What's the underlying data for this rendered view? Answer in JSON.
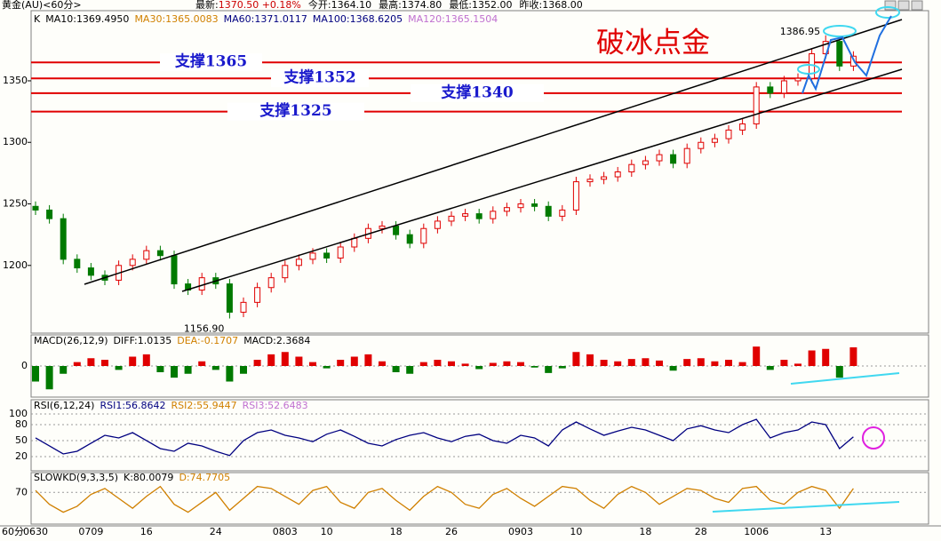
{
  "header": {
    "instrument": "黄金(AU)<60分>",
    "quote": [
      {
        "label": "最新:",
        "value": "1370.50 +0.18%"
      },
      {
        "label": "今开:",
        "value": "1364.10"
      },
      {
        "label": "最高:",
        "value": "1374.80"
      },
      {
        "label": "最低:",
        "value": "1352.00"
      },
      {
        "label": "昨收:",
        "value": "1368.00"
      }
    ]
  },
  "chart_data": {
    "type": "candlestick",
    "title": "破冰点金",
    "legend": [
      {
        "name": "K",
        "color": "#000000"
      },
      {
        "name": "MA10:1369.4950",
        "color": "#000000"
      },
      {
        "name": "MA30:1365.0083",
        "color": "#d08000"
      },
      {
        "name": "MA60:1371.0117",
        "color": "#000080"
      },
      {
        "name": "MA100:1368.6205",
        "color": "#000080"
      },
      {
        "name": "MA120:1365.1504",
        "color": "#c070d0"
      }
    ],
    "categories": [
      "0630",
      null,
      null,
      null,
      "0709",
      null,
      null,
      null,
      "16",
      null,
      null,
      null,
      null,
      "24",
      null,
      null,
      null,
      null,
      "0803",
      null,
      null,
      "10",
      null,
      null,
      null,
      null,
      "18",
      null,
      null,
      null,
      "26",
      null,
      null,
      null,
      null,
      "0903",
      null,
      null,
      null,
      "10",
      null,
      null,
      null,
      null,
      "18",
      null,
      null,
      null,
      "28",
      null,
      null,
      null,
      "1006",
      null,
      null,
      null,
      null,
      "13",
      null,
      null
    ],
    "x_unit_label": "60分",
    "open": [
      1248,
      1245,
      1238,
      1205,
      1198,
      1192,
      1188,
      1200,
      1205,
      1212,
      1208,
      1185,
      1180,
      1190,
      1185,
      1162,
      1170,
      1182,
      1190,
      1200,
      1205,
      1210,
      1206,
      1215,
      1222,
      1230,
      1232,
      1225,
      1218,
      1230,
      1236,
      1240,
      1242,
      1238,
      1244,
      1247,
      1250,
      1248,
      1240,
      1245,
      1268,
      1270,
      1272,
      1276,
      1282,
      1285,
      1290,
      1283,
      1295,
      1300,
      1303,
      1310,
      1315,
      1345,
      1340,
      1350,
      1352,
      1372,
      1382,
      1362
    ],
    "high": [
      1252,
      1249,
      1242,
      1209,
      1202,
      1196,
      1204,
      1209,
      1216,
      1216,
      1212,
      1189,
      1194,
      1194,
      1189,
      1174,
      1186,
      1194,
      1204,
      1209,
      1214,
      1214,
      1219,
      1226,
      1234,
      1236,
      1236,
      1229,
      1234,
      1240,
      1244,
      1246,
      1246,
      1248,
      1251,
      1254,
      1254,
      1252,
      1249,
      1272,
      1274,
      1276,
      1280,
      1286,
      1289,
      1294,
      1294,
      1299,
      1304,
      1307,
      1314,
      1319,
      1349,
      1349,
      1354,
      1356,
      1376,
      1386.95,
      1386,
      1374
    ],
    "low": [
      1241,
      1234,
      1201,
      1194,
      1188,
      1184,
      1184,
      1196,
      1201,
      1204,
      1181,
      1176,
      1176,
      1181,
      1156.9,
      1158,
      1166,
      1178,
      1186,
      1196,
      1201,
      1202,
      1202,
      1211,
      1218,
      1226,
      1221,
      1214,
      1214,
      1226,
      1232,
      1236,
      1234,
      1234,
      1240,
      1243,
      1244,
      1236,
      1236,
      1241,
      1264,
      1266,
      1268,
      1272,
      1278,
      1281,
      1279,
      1279,
      1291,
      1296,
      1299,
      1306,
      1311,
      1336,
      1336,
      1346,
      1348,
      1368,
      1358,
      1358
    ],
    "close": [
      1245,
      1238,
      1205,
      1198,
      1192,
      1188,
      1200,
      1205,
      1212,
      1208,
      1185,
      1180,
      1190,
      1185,
      1162,
      1170,
      1182,
      1190,
      1200,
      1205,
      1210,
      1206,
      1215,
      1222,
      1230,
      1232,
      1225,
      1218,
      1230,
      1236,
      1240,
      1242,
      1238,
      1244,
      1247,
      1250,
      1248,
      1240,
      1245,
      1268,
      1270,
      1272,
      1276,
      1282,
      1285,
      1290,
      1283,
      1295,
      1300,
      1303,
      1310,
      1315,
      1345,
      1340,
      1350,
      1352,
      1372,
      1382,
      1362,
      1370
    ],
    "up_color": "#e00000",
    "down_color": "#007a00",
    "ylim": [
      1145,
      1407
    ],
    "yticks": [
      1200,
      1250,
      1300,
      1350
    ],
    "supports": [
      {
        "value": 1365,
        "label": "支撑1365"
      },
      {
        "value": 1352,
        "label": "支撑1352"
      },
      {
        "value": 1340,
        "label": "支撑1340"
      },
      {
        "value": 1325,
        "label": "支撑1325"
      }
    ],
    "support_color": "#e00000",
    "annotations": [
      {
        "text": "1386.95"
      },
      {
        "text": "1156.90"
      }
    ],
    "macd": {
      "label": "MACD(26,12,9)",
      "legend": [
        {
          "name": "DIFF:1.0135",
          "color": "#000000"
        },
        {
          "name": "DEA:-0.1707",
          "color": "#d08000"
        },
        {
          "name": "MACD:2.3684",
          "color": "#000000"
        }
      ],
      "values": [
        -2,
        -3,
        -1,
        0.5,
        1,
        0.8,
        -0.5,
        1.2,
        1.5,
        -0.8,
        -1.5,
        -1,
        0.6,
        -0.5,
        -2,
        -1,
        0.8,
        1.5,
        1.8,
        1.2,
        0.5,
        -0.3,
        0.8,
        1.2,
        1.5,
        0.6,
        -0.8,
        -1,
        0.5,
        0.8,
        0.6,
        0.3,
        -0.4,
        0.4,
        0.6,
        0.5,
        -0.2,
        -0.9,
        -0.3,
        1.8,
        1.5,
        0.8,
        0.6,
        0.9,
        1,
        0.7,
        -0.6,
        0.9,
        1,
        0.6,
        0.8,
        0.5,
        2.5,
        -0.5,
        0.8,
        0.3,
        2,
        2.2,
        -1.5,
        2.4
      ],
      "ylim": [
        -4,
        4
      ],
      "yticks": [
        0
      ]
    },
    "rsi": {
      "label": "RSI(6,12,24)",
      "legend": [
        {
          "name": "RSI1:56.8642",
          "color": "#000080"
        },
        {
          "name": "RSI2:55.9447",
          "color": "#d08000"
        },
        {
          "name": "RSI3:52.6483",
          "color": "#c070d0"
        }
      ],
      "values": [
        55,
        40,
        25,
        30,
        45,
        60,
        55,
        65,
        50,
        35,
        30,
        45,
        40,
        30,
        22,
        50,
        65,
        70,
        60,
        55,
        48,
        62,
        70,
        58,
        45,
        40,
        52,
        60,
        65,
        55,
        48,
        58,
        62,
        50,
        45,
        60,
        55,
        40,
        70,
        85,
        72,
        60,
        68,
        75,
        70,
        60,
        50,
        72,
        78,
        70,
        65,
        80,
        90,
        55,
        65,
        70,
        85,
        80,
        35,
        57
      ],
      "color": "#000080",
      "ylim": [
        -6.7,
        126.7
      ],
      "yticks": [
        20,
        50,
        80,
        100
      ]
    },
    "kd": {
      "label": "SLOWKD(9,3,3,5)",
      "legend": [
        {
          "name": "K:80.0079",
          "color": "#000000"
        },
        {
          "name": "D:74.7705",
          "color": "#d08000"
        }
      ],
      "values": [
        75,
        40,
        20,
        35,
        65,
        80,
        55,
        30,
        60,
        85,
        40,
        20,
        45,
        70,
        25,
        55,
        85,
        80,
        60,
        40,
        75,
        85,
        45,
        30,
        70,
        80,
        50,
        25,
        60,
        85,
        70,
        40,
        30,
        65,
        80,
        55,
        35,
        60,
        85,
        80,
        50,
        30,
        65,
        85,
        70,
        40,
        60,
        80,
        75,
        55,
        45,
        80,
        85,
        50,
        40,
        70,
        85,
        75,
        30,
        80
      ],
      "color": "#d08000",
      "ylim": [
        -10,
        120
      ],
      "yticks": [
        70
      ]
    }
  }
}
